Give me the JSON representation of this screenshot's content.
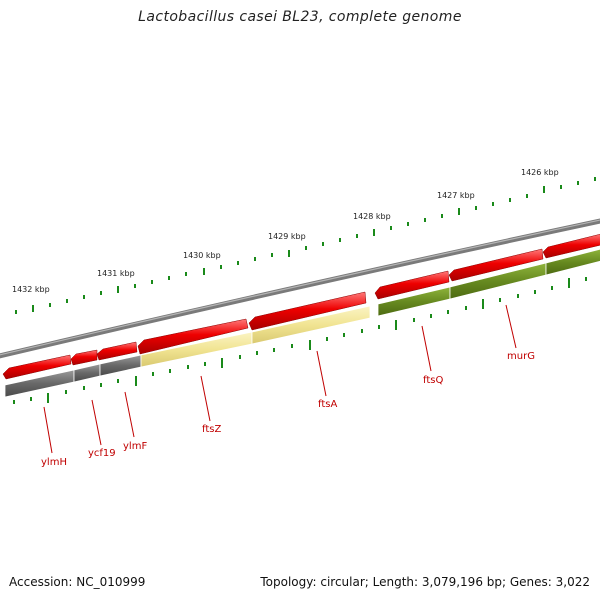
{
  "title": "Lactobacillus casei BL23, complete genome",
  "footer": {
    "accession": "Accession: NC_010999",
    "topology": "Topology: circular; Length: 3,079,196 bp; Genes: 3,022"
  },
  "colors": {
    "backbone": "#8a8a8a",
    "cds_red": "#e80000",
    "cog_gray": "#6e6e6e",
    "cog_yellow": "#f2e79a",
    "cog_olive": "#6b8e23",
    "ticks": "#1a8a1a",
    "gene_label": "#c00000"
  },
  "ruler_labels": [
    "1432 kbp",
    "1431 kbp",
    "1430 kbp",
    "1429 kbp",
    "1428 kbp",
    "1427 kbp",
    "1426 kbp"
  ],
  "genes": [
    {
      "name": "ylmH"
    },
    {
      "name": "ycf19"
    },
    {
      "name": "ylmF"
    },
    {
      "name": "ftsZ"
    },
    {
      "name": "ftsA"
    },
    {
      "name": "ftsQ"
    },
    {
      "name": "murG"
    }
  ]
}
